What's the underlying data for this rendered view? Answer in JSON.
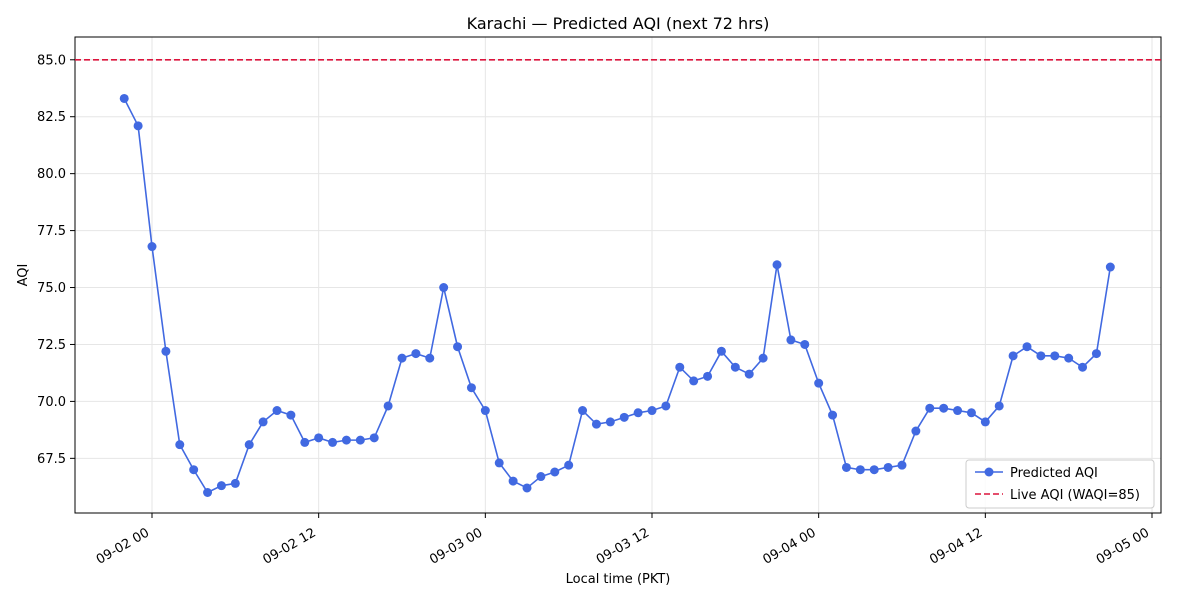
{
  "chart_data": {
    "type": "line",
    "title": "Karachi — Predicted AQI (next 72 hrs)",
    "xlabel": "Local time (PKT)",
    "ylabel": "AQI",
    "x_start": "2025-09-01 22:00",
    "x_step_hours": 1,
    "x_ticks": [
      "09-02 00",
      "09-02 12",
      "09-03 00",
      "09-03 12",
      "09-04 00",
      "09-04 12",
      "09-05 00"
    ],
    "y_ticks": [
      "67.5",
      "70.0",
      "72.5",
      "75.0",
      "77.5",
      "80.0",
      "82.5",
      "85.0"
    ],
    "ylim": [
      65.1,
      86.0
    ],
    "grid": true,
    "legend_position": "lower-right",
    "series": [
      {
        "name": "Predicted AQI",
        "color": "#4169e1",
        "marker": "circle",
        "values": [
          83.3,
          82.1,
          76.8,
          72.2,
          68.1,
          67.0,
          66.0,
          66.3,
          66.4,
          68.1,
          69.1,
          69.6,
          69.4,
          68.2,
          68.4,
          68.2,
          68.3,
          68.3,
          68.4,
          69.8,
          71.9,
          72.1,
          71.9,
          75.0,
          72.4,
          70.6,
          69.6,
          67.3,
          66.5,
          66.2,
          66.7,
          66.9,
          67.2,
          69.6,
          69.0,
          69.1,
          69.3,
          69.5,
          69.6,
          69.8,
          71.5,
          70.9,
          71.1,
          72.2,
          71.5,
          71.2,
          71.9,
          76.0,
          72.7,
          72.5,
          70.8,
          69.4,
          67.1,
          67.0,
          67.0,
          67.1,
          67.2,
          68.7,
          69.7,
          69.7,
          69.6,
          69.5,
          69.1,
          69.8,
          72.0,
          72.4,
          72.0,
          72.0,
          71.9,
          71.5,
          72.1,
          75.9
        ]
      },
      {
        "name": "Live AQI (WAQI=85)",
        "color": "#dc143c",
        "style": "dashed",
        "y": 85
      }
    ]
  }
}
